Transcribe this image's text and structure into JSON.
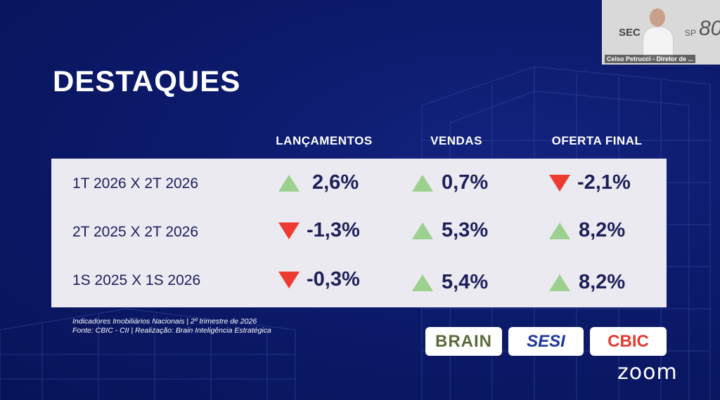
{
  "slide": {
    "title": "DESTAQUES",
    "columns": [
      "LANÇAMENTOS",
      "VENDAS",
      "OFERTA FINAL"
    ],
    "rows": [
      {
        "label": "1T 2026 X 2T 2026",
        "values": [
          {
            "value": "2,6%",
            "trend": "up"
          },
          {
            "value": "0,7%",
            "trend": "up"
          },
          {
            "value": "-2,1%",
            "trend": "down"
          }
        ]
      },
      {
        "label": "2T 2025 X 2T 2026",
        "values": [
          {
            "value": "-1,3%",
            "trend": "down"
          },
          {
            "value": "5,3%",
            "trend": "up"
          },
          {
            "value": "8,2%",
            "trend": "up"
          }
        ]
      },
      {
        "label": "1S 2025 X 1S 2026",
        "values": [
          {
            "value": "-0,3%",
            "trend": "down"
          },
          {
            "value": "5,4%",
            "trend": "up"
          },
          {
            "value": "8,2%",
            "trend": "up"
          }
        ]
      }
    ],
    "source_line1": "Indicadores Imobiliários Nacionais | 2º trimestre de 2026",
    "source_line2": "Fonte: CBIC - CII | Realização: Brain Inteligência Estratégica",
    "logos": {
      "brain": "BRAIN",
      "sesi": "SESI",
      "cbic": "CBIC"
    },
    "colors": {
      "up": "#9cd08e",
      "down": "#ee3b32",
      "background": "#0c1a6b",
      "panel": "#eaeaf0"
    }
  },
  "video": {
    "participant_name": "Celso Petrucci - Diretor de ...",
    "bg_logo_text": "SEC",
    "bg_logo_suffix": "SP",
    "bg_anniversary": "80"
  },
  "app": {
    "watermark": "zoom"
  }
}
